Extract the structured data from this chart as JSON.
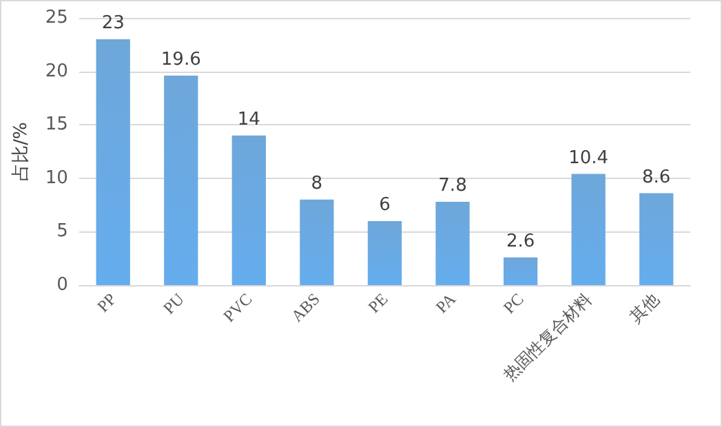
{
  "chart_data": {
    "type": "bar",
    "ylabel": "占比/%",
    "categories": [
      "PP",
      "PU",
      "PVC",
      "ABS",
      "PE",
      "PA",
      "PC",
      "热固性复合材料",
      "其他"
    ],
    "values": [
      23,
      19.6,
      14,
      8,
      6,
      7.8,
      2.6,
      10.4,
      8.6
    ],
    "color": "#5b9bd5",
    "ylim": [
      0,
      25
    ],
    "yticks": [
      0,
      5,
      10,
      15,
      20,
      25
    ],
    "grid": "y",
    "data_labels": true
  }
}
